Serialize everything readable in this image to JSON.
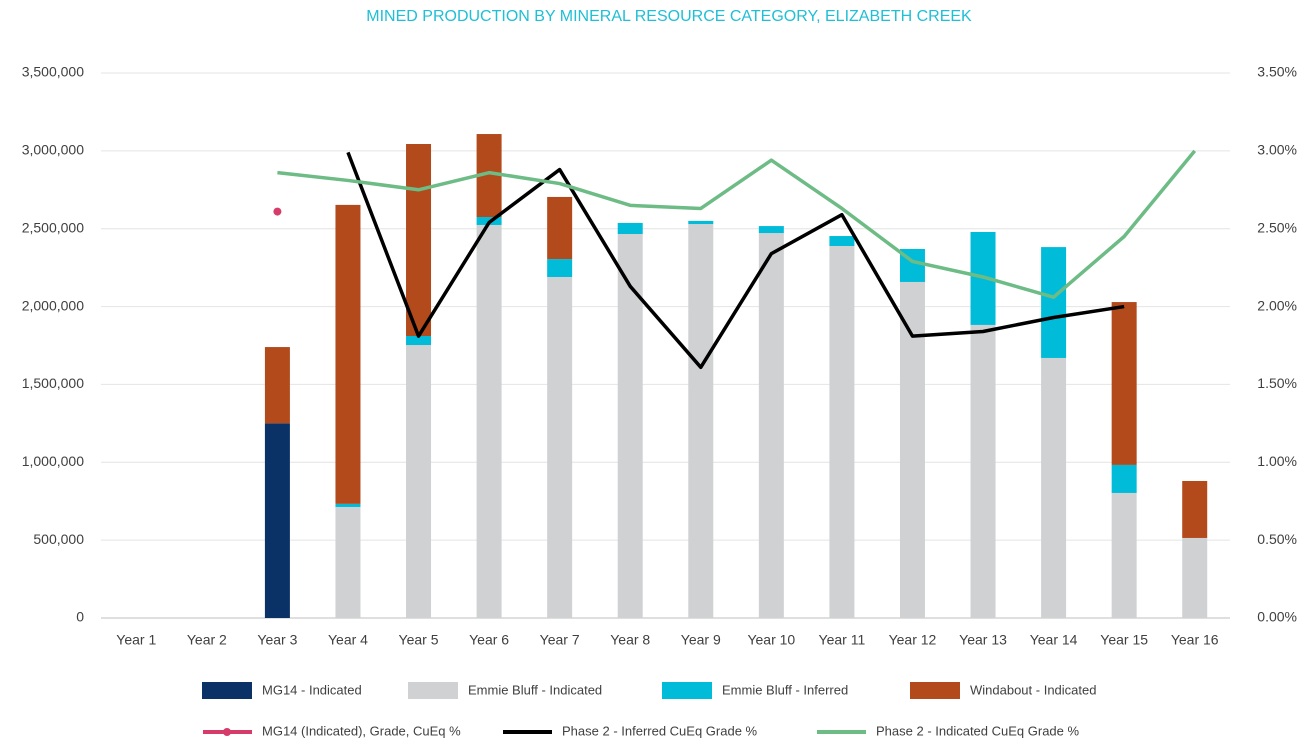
{
  "chart_data": {
    "type": "bar",
    "title": "MINED PRODUCTION BY MINERAL RESOURCE CATEGORY, ELIZABETH CREEK",
    "categories": [
      "Year 1",
      "Year 2",
      "Year 3",
      "Year 4",
      "Year 5",
      "Year 6",
      "Year 7",
      "Year 8",
      "Year 9",
      "Year 10",
      "Year 11",
      "Year 12",
      "Year 13",
      "Year 14",
      "Year 15",
      "Year 16"
    ],
    "stacked": true,
    "grid": true,
    "ylim": [
      0,
      3500000
    ],
    "yticks": [
      0,
      {
        "value": 500000,
        "label": "500,000"
      },
      {
        "value": 1000000,
        "label": "1,000,000"
      },
      {
        "value": 1500000,
        "label": "1,500,000"
      },
      {
        "value": 2000000,
        "label": "2,000,000"
      },
      {
        "value": 2500000,
        "label": "2,500,000"
      },
      {
        "value": 3000000,
        "label": "3,000,000"
      },
      {
        "value": 3500000,
        "label": "3,500,000"
      }
    ],
    "y2lim": [
      0,
      3.5
    ],
    "y2ticks": [
      {
        "value": 0,
        "label": "0.00%"
      },
      {
        "value": 0.5,
        "label": "0.50%"
      },
      {
        "value": 1,
        "label": "1.00%"
      },
      {
        "value": 1.5,
        "label": "1.50%"
      },
      {
        "value": 2,
        "label": "2.00%"
      },
      {
        "value": 2.5,
        "label": "2.50%"
      },
      {
        "value": 3,
        "label": "3.00%"
      },
      {
        "value": 3.5,
        "label": "3.50%"
      }
    ],
    "series": [
      {
        "name": "MG14 - Indicated",
        "type": "bar",
        "color": "#0b3266",
        "values": [
          null,
          null,
          1250000,
          null,
          null,
          null,
          null,
          null,
          null,
          null,
          null,
          null,
          null,
          null,
          null,
          null
        ]
      },
      {
        "name": "Emmie Bluff - Indicated",
        "type": "bar",
        "color": "#d0d1d3",
        "values": [
          null,
          null,
          null,
          713000,
          1753000,
          2524000,
          2190000,
          2466000,
          2530000,
          2472000,
          2389000,
          2158000,
          1882000,
          1670000,
          803000,
          514000
        ]
      },
      {
        "name": "Emmie Bluff - Inferred",
        "type": "bar",
        "color": "#00bcd9",
        "values": [
          null,
          null,
          null,
          20000,
          58000,
          51000,
          115000,
          71000,
          20000,
          45000,
          64000,
          212000,
          597000,
          712000,
          180000,
          null
        ]
      },
      {
        "name": "Windabout - Indicated",
        "type": "bar",
        "color": "#b24a1b",
        "values": [
          null,
          null,
          490000,
          1920000,
          1233000,
          533000,
          399000,
          null,
          null,
          null,
          null,
          null,
          null,
          null,
          1046000,
          366000
        ]
      },
      {
        "name": "MG14 (Indicated), Grade, CuEq %",
        "type": "line",
        "axis": "y2",
        "marker": true,
        "color": "#d63c6a",
        "values": [
          null,
          null,
          2.61,
          null,
          null,
          null,
          null,
          null,
          null,
          null,
          null,
          null,
          null,
          null,
          null,
          null
        ]
      },
      {
        "name": "Phase 2 - Inferred CuEq Grade %",
        "type": "line",
        "axis": "y2",
        "color": "#000000",
        "values": [
          null,
          null,
          null,
          2.99,
          1.81,
          2.54,
          2.88,
          2.13,
          1.61,
          2.34,
          2.59,
          1.81,
          1.84,
          1.93,
          2.0,
          null
        ]
      },
      {
        "name": "Phase 2 - Indicated CuEq Grade %",
        "type": "line",
        "axis": "y2",
        "color": "#6dbb85",
        "values": [
          null,
          null,
          2.86,
          2.81,
          2.75,
          2.86,
          2.79,
          2.65,
          2.63,
          2.94,
          2.63,
          2.29,
          2.19,
          2.06,
          2.45,
          3.0
        ]
      }
    ]
  }
}
